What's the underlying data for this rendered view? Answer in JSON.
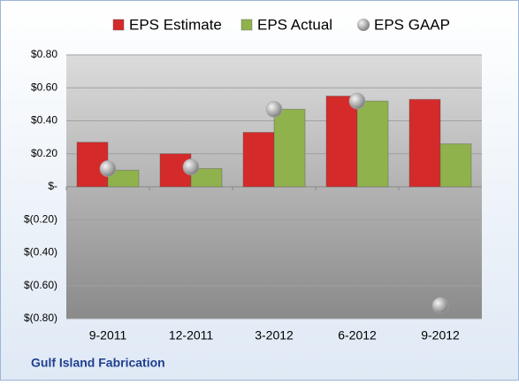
{
  "chart_data": {
    "type": "bar",
    "categories": [
      "9-2011",
      "12-2011",
      "3-2012",
      "6-2012",
      "9-2012"
    ],
    "series": [
      {
        "name": "EPS Estimate",
        "color": "#d42a2a",
        "type": "bar",
        "values": [
          0.27,
          0.2,
          0.33,
          0.55,
          0.53
        ]
      },
      {
        "name": "EPS Actual",
        "color": "#8fb24c",
        "type": "bar",
        "values": [
          0.1,
          0.11,
          0.47,
          0.52,
          0.26
        ]
      },
      {
        "name": "EPS GAAP",
        "color": "#a8a8a8",
        "type": "scatter",
        "values": [
          0.11,
          0.12,
          0.47,
          0.52,
          -0.72
        ]
      }
    ],
    "ylim": [
      -0.8,
      0.8
    ],
    "yticks": [
      {
        "value": -0.8,
        "label": "$(0.80)"
      },
      {
        "value": -0.6,
        "label": "$(0.60)"
      },
      {
        "value": -0.4,
        "label": "$(0.40)"
      },
      {
        "value": -0.2,
        "label": "$(0.20)"
      },
      {
        "value": 0,
        "label": "$-"
      },
      {
        "value": 0.2,
        "label": "$0.20"
      },
      {
        "value": 0.4,
        "label": "$0.40"
      },
      {
        "value": 0.6,
        "label": "$0.60"
      },
      {
        "value": 0.8,
        "label": "$0.80"
      }
    ],
    "grid": true,
    "legend": "top",
    "footer": "Gulf Island Fabrication"
  }
}
